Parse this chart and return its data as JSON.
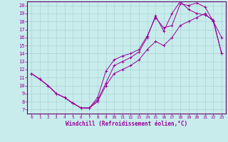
{
  "xlabel": "Windchill (Refroidissement éolien,°C)",
  "background_color": "#c8ecec",
  "grid_color": "#b0d8d8",
  "line_color": "#990099",
  "spine_color": "#660066",
  "xlim": [
    -0.5,
    23.5
  ],
  "ylim": [
    6.5,
    20.5
  ],
  "xticks": [
    0,
    1,
    2,
    3,
    4,
    5,
    6,
    7,
    8,
    9,
    10,
    11,
    12,
    13,
    14,
    15,
    16,
    17,
    18,
    19,
    20,
    21,
    22,
    23
  ],
  "yticks": [
    7,
    8,
    9,
    10,
    11,
    12,
    13,
    14,
    15,
    16,
    17,
    18,
    19,
    20
  ],
  "curve1_x": [
    0,
    1,
    2,
    3,
    4,
    5,
    6,
    7,
    8,
    9,
    10,
    11,
    12,
    13,
    14,
    15,
    16,
    17,
    18,
    19,
    20,
    21,
    22,
    23
  ],
  "curve1_y": [
    11.5,
    10.8,
    10.0,
    9.0,
    8.5,
    7.8,
    7.2,
    7.2,
    8.2,
    10.3,
    12.5,
    13.0,
    13.5,
    14.2,
    16.0,
    18.7,
    16.8,
    19.0,
    20.5,
    19.5,
    19.0,
    18.8,
    18.2,
    14.0
  ],
  "curve2_x": [
    0,
    1,
    2,
    3,
    4,
    5,
    6,
    7,
    8,
    9,
    10,
    11,
    12,
    13,
    14,
    15,
    16,
    17,
    18,
    19,
    20,
    21,
    22,
    23
  ],
  "curve2_y": [
    11.5,
    10.8,
    10.0,
    9.0,
    8.5,
    7.8,
    7.2,
    7.2,
    8.5,
    11.8,
    13.2,
    13.7,
    14.0,
    14.5,
    16.2,
    18.5,
    17.2,
    17.5,
    20.2,
    20.0,
    20.3,
    19.8,
    18.0,
    16.0
  ],
  "curve3_x": [
    0,
    1,
    2,
    3,
    4,
    5,
    6,
    7,
    8,
    9,
    10,
    11,
    12,
    13,
    14,
    15,
    16,
    17,
    18,
    19,
    20,
    21,
    22,
    23
  ],
  "curve3_y": [
    11.5,
    10.8,
    10.0,
    9.0,
    8.5,
    7.8,
    7.2,
    7.2,
    8.0,
    10.0,
    11.5,
    12.0,
    12.5,
    13.2,
    14.5,
    15.5,
    15.0,
    16.0,
    17.5,
    18.0,
    18.5,
    19.0,
    18.0,
    14.0
  ]
}
